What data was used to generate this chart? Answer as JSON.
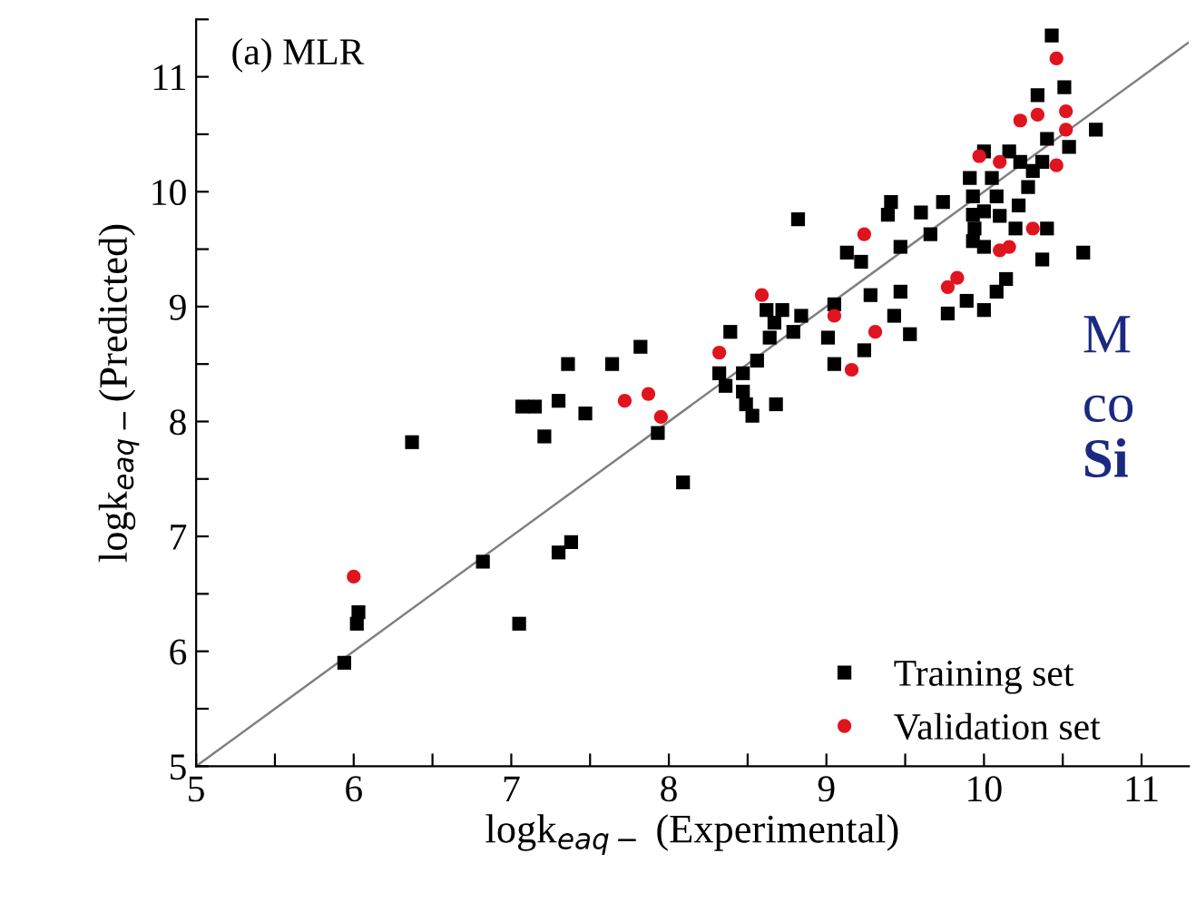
{
  "chart_data": {
    "type": "scatter",
    "xlabel": "logk$_{eaq−}$ (Experimental)",
    "ylabel": "logk$_{eaq−}$(Predicted)",
    "annotations": [
      "(a) MLR",
      "M",
      "co",
      "Si"
    ],
    "xlim": [
      5,
      11.3
    ],
    "ylim": [
      5,
      11.5
    ],
    "xticks": [
      5,
      {
        "value": 5.5,
        "label": null
      },
      6,
      {
        "value": 6.5,
        "label": null
      },
      7,
      {
        "value": 7.5,
        "label": null
      },
      8,
      {
        "value": 8.5,
        "label": null
      },
      9,
      {
        "value": 9.5,
        "label": null
      },
      10,
      {
        "value": 10.5,
        "label": null
      },
      11
    ],
    "yticks": [
      5,
      {
        "value": 5.5,
        "label": null
      },
      6,
      {
        "value": 6.5,
        "label": null
      },
      7,
      {
        "value": 7.5,
        "label": null
      },
      8,
      {
        "value": 8.5,
        "label": null
      },
      9,
      {
        "value": 9.5,
        "label": null
      },
      10,
      {
        "value": 10.5,
        "label": null
      },
      11,
      {
        "value": 11.5,
        "label": null
      }
    ],
    "legend": "bottom right",
    "grid": false,
    "series": [
      {
        "type": "line",
        "color": "#808080",
        "x": [
          5,
          11.3
        ],
        "values": [
          5,
          11.3
        ],
        "line_style": "solid"
      },
      {
        "name": "Training set",
        "color": "#000000",
        "marker": "square",
        "x": [
          5.94,
          6.02,
          6.03,
          6.82,
          7.05,
          7.3,
          7.38,
          6.37,
          7.07,
          7.15,
          7.3,
          7.21,
          7.36,
          7.64,
          7.82,
          7.47,
          7.93,
          8.09,
          10.43,
          10.51,
          10.34,
          10.71,
          10.4,
          10.54,
          10.0,
          10.16,
          10.23,
          10.31,
          10.37,
          9.91,
          10.05,
          10.28,
          9.93,
          10.08,
          10.22,
          9.41,
          9.39,
          9.74,
          9.6,
          9.93,
          10.0,
          10.1,
          9.94,
          10.2,
          10.4,
          8.82,
          9.66,
          9.47,
          9.93,
          10.0,
          10.37,
          10.63,
          9.13,
          9.22,
          10.14,
          10.08,
          9.47,
          9.28,
          9.89,
          9.77,
          10.0,
          9.05,
          9.43,
          9.53,
          9.24,
          9.05,
          8.62,
          8.72,
          8.84,
          8.67,
          8.79,
          8.39,
          8.64,
          9.01,
          8.56,
          8.32,
          8.47,
          8.36,
          8.47,
          8.49,
          8.68,
          8.53
        ],
        "values": [
          5.9,
          6.24,
          6.34,
          6.78,
          6.24,
          6.86,
          6.95,
          7.82,
          8.13,
          8.13,
          8.18,
          7.87,
          8.5,
          8.5,
          8.65,
          8.07,
          7.9,
          7.47,
          11.36,
          10.91,
          10.84,
          10.54,
          10.46,
          10.39,
          10.35,
          10.35,
          10.26,
          10.18,
          10.26,
          10.12,
          10.12,
          10.04,
          9.96,
          9.96,
          9.88,
          9.91,
          9.8,
          9.91,
          9.82,
          9.8,
          9.83,
          9.79,
          9.68,
          9.68,
          9.68,
          9.76,
          9.63,
          9.52,
          9.57,
          9.52,
          9.41,
          9.47,
          9.47,
          9.39,
          9.24,
          9.13,
          9.13,
          9.1,
          9.05,
          8.94,
          8.97,
          9.02,
          8.92,
          8.76,
          8.62,
          8.5,
          8.97,
          8.97,
          8.92,
          8.86,
          8.78,
          8.78,
          8.73,
          8.73,
          8.53,
          8.42,
          8.42,
          8.31,
          8.26,
          8.15,
          8.15,
          8.05
        ]
      },
      {
        "name": "Validation set",
        "color": "#e0141e",
        "marker": "circle",
        "x": [
          6.0,
          7.72,
          7.87,
          7.95,
          10.46,
          10.52,
          10.23,
          10.34,
          10.52,
          9.97,
          10.1,
          10.46,
          9.24,
          10.31,
          10.1,
          10.16,
          9.83,
          9.77,
          8.59,
          9.05,
          9.31,
          8.32,
          9.16
        ],
        "values": [
          6.65,
          8.18,
          8.24,
          8.04,
          11.16,
          10.7,
          10.62,
          10.67,
          10.54,
          10.31,
          10.26,
          10.23,
          9.63,
          9.68,
          9.49,
          9.52,
          9.25,
          9.17,
          9.1,
          8.92,
          8.78,
          8.6,
          8.45
        ]
      }
    ]
  }
}
